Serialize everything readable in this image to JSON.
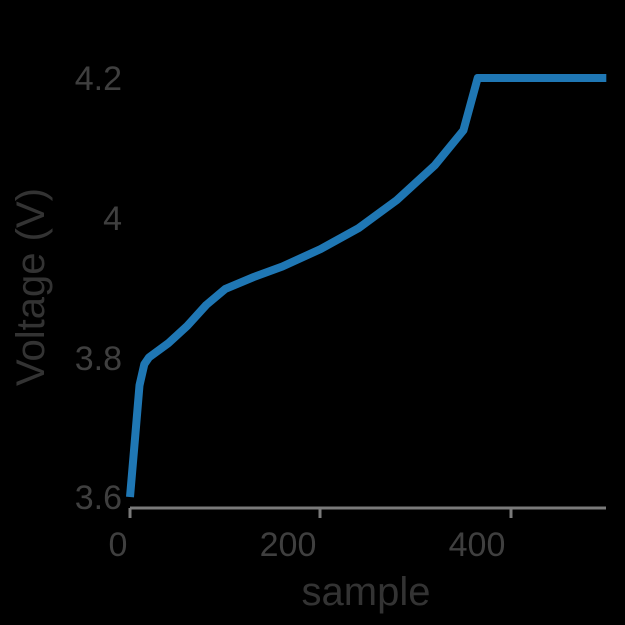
{
  "chart_data": {
    "type": "line",
    "title": "",
    "xlabel": "sample",
    "ylabel": "Voltage (V)",
    "xlim": [
      0,
      500
    ],
    "ylim": [
      3.6,
      4.2
    ],
    "x_ticks": [
      "0",
      "200",
      "400"
    ],
    "y_ticks": [
      "3.6",
      "3.8",
      "4",
      "4.2"
    ],
    "grid": false,
    "legend": null,
    "series": [
      {
        "name": "Voltage",
        "color": "#1f77b4",
        "x": [
          0,
          5,
          10,
          15,
          20,
          40,
          60,
          80,
          100,
          130,
          160,
          200,
          240,
          280,
          320,
          350,
          365,
          400,
          450,
          500
        ],
        "y": [
          3.6,
          3.68,
          3.76,
          3.79,
          3.8,
          3.82,
          3.845,
          3.875,
          3.898,
          3.915,
          3.93,
          3.955,
          3.985,
          4.025,
          4.075,
          4.125,
          4.2,
          4.2,
          4.2,
          4.2
        ]
      }
    ]
  }
}
